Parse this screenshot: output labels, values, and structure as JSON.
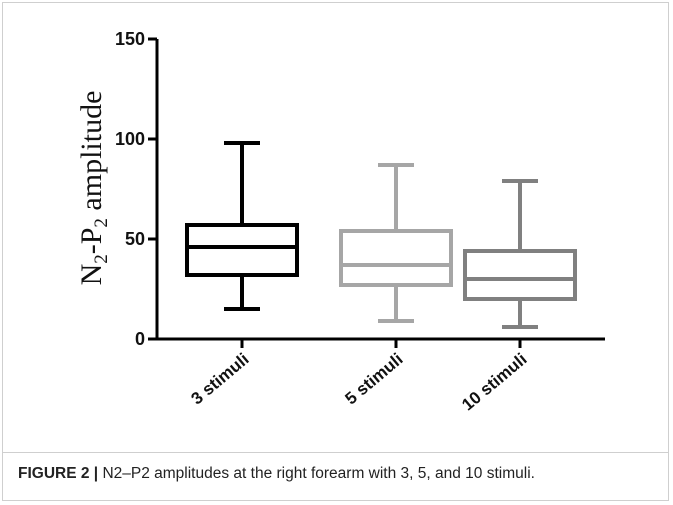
{
  "caption": {
    "label": "FIGURE 2 |",
    "text": " N2–P2 amplitudes at the right forearm with 3, 5, and 10 stimuli."
  },
  "chart_data": {
    "type": "boxplot",
    "ylabel": {
      "base": "N",
      "sub1": "2",
      "mid": "-P",
      "sub2": "2",
      "rest": " amplitude"
    },
    "ylim": [
      0,
      150
    ],
    "yticks": [
      0,
      50,
      100,
      150
    ],
    "grid": false,
    "categories": [
      "3 stimuli",
      "5 stimuli",
      "10 stimuli"
    ],
    "boxes": [
      {
        "name": "3 stimuli",
        "min": 15,
        "q1": 32,
        "median": 46,
        "q3": 57,
        "max": 98,
        "color": "#000000"
      },
      {
        "name": "5 stimuli",
        "min": 9,
        "q1": 27,
        "median": 37,
        "q3": 54,
        "max": 87,
        "color": "#a6a6a6"
      },
      {
        "name": "10 stimuli",
        "min": 6,
        "q1": 20,
        "median": 30,
        "q3": 44,
        "max": 79,
        "color": "#808080"
      }
    ]
  }
}
